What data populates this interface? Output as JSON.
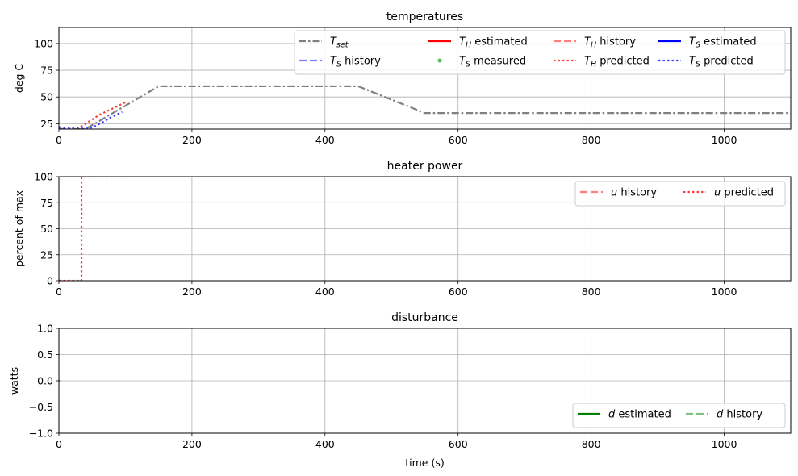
{
  "chart_data": [
    {
      "type": "line",
      "title": "temperatures",
      "xlabel": "",
      "ylabel": "deg C",
      "xlim": [
        0,
        1100
      ],
      "ylim": [
        20,
        115
      ],
      "xticks": [
        0,
        200,
        400,
        600,
        800,
        1000
      ],
      "yticks": [
        25,
        50,
        75,
        100
      ],
      "grid": true,
      "legend_placement": "upper right",
      "legend_columns": 4,
      "series": [
        {
          "name": "T_set",
          "name_sub": "set",
          "color": "#808080",
          "style": "dashdot",
          "x": [
            0,
            10,
            20,
            30,
            40,
            150,
            450,
            550,
            1100
          ],
          "y": [
            20,
            20,
            20,
            20,
            20,
            60,
            60,
            35,
            35
          ]
        },
        {
          "name": "T_H estimated",
          "name_sub": "H",
          "name_rest": " estimated",
          "color": "#ff0000",
          "style": "solid",
          "x": [],
          "y": []
        },
        {
          "name": "T_H history",
          "name_sub": "H",
          "name_rest": " history",
          "color": "#ff7f7f",
          "style": "dashed",
          "x": [
            0
          ],
          "y": [
            21
          ]
        },
        {
          "name": "T_S estimated",
          "name_sub": "S",
          "name_rest": " estimated",
          "color": "#0000ff",
          "style": "solid",
          "x": [],
          "y": []
        },
        {
          "name": "T_S history",
          "name_sub": "S",
          "name_rest": " history",
          "color": "#7f7fff",
          "style": "dashed",
          "x": [
            0
          ],
          "y": [
            21
          ]
        },
        {
          "name": "T_S measured",
          "name_sub": "S",
          "name_rest": " measured",
          "color": "#5cb85c",
          "style": "marker",
          "x": [
            0
          ],
          "y": [
            21
          ]
        },
        {
          "name": "T_H predicted",
          "name_sub": "H",
          "name_rest": " predicted",
          "color": "#ff4040",
          "style": "dotted",
          "x": [
            0,
            30,
            40,
            50,
            60,
            70,
            80,
            90,
            100
          ],
          "y": [
            21,
            21,
            25,
            29,
            33,
            36,
            39,
            42,
            45
          ]
        },
        {
          "name": "T_S predicted",
          "name_sub": "S",
          "name_rest": " predicted",
          "color": "#4040ff",
          "style": "dotted",
          "x": [
            0,
            45,
            55,
            65,
            75,
            85,
            95
          ],
          "y": [
            20.5,
            20.5,
            23,
            26,
            30,
            33,
            36
          ]
        }
      ]
    },
    {
      "type": "line",
      "title": "heater power",
      "xlabel": "",
      "ylabel": "percent of max",
      "xlim": [
        0,
        1100
      ],
      "ylim": [
        0,
        100
      ],
      "xticks": [
        0,
        200,
        400,
        600,
        800,
        1000
      ],
      "yticks": [
        0,
        25,
        50,
        75,
        100
      ],
      "grid": true,
      "legend_placement": "upper right",
      "legend_columns": 2,
      "series": [
        {
          "name": "u history",
          "label_var": "u",
          "name_rest": " history",
          "color": "#ff7f7f",
          "style": "dashed",
          "x": [
            0
          ],
          "y": [
            0
          ]
        },
        {
          "name": "u predicted",
          "label_var": "u",
          "name_rest": " predicted",
          "color": "#ff4040",
          "style": "dotted",
          "x": [
            0,
            34,
            34,
            100
          ],
          "y": [
            0,
            0,
            100,
            100
          ]
        }
      ]
    },
    {
      "type": "line",
      "title": "disturbance",
      "xlabel": "time (s)",
      "ylabel": "watts",
      "xlim": [
        0,
        1100
      ],
      "ylim": [
        -1,
        1
      ],
      "xticks": [
        0,
        200,
        400,
        600,
        800,
        1000
      ],
      "yticks": [
        -1.0,
        -0.5,
        0.0,
        0.5,
        1.0
      ],
      "ytick_labels": [
        "−1.0",
        "−0.5",
        "0.0",
        "0.5",
        "1.0"
      ],
      "grid": true,
      "legend_placement": "lower right",
      "legend_columns": 2,
      "series": [
        {
          "name": "d estimated",
          "label_var": "d",
          "name_rest": " estimated",
          "color": "#008000",
          "style": "solid",
          "x": [
            0
          ],
          "y": [
            0
          ]
        },
        {
          "name": "d history",
          "label_var": "d",
          "name_rest": " history",
          "color": "#7fbf7f",
          "style": "dashed",
          "x": [
            0
          ],
          "y": [
            0
          ]
        }
      ]
    }
  ]
}
